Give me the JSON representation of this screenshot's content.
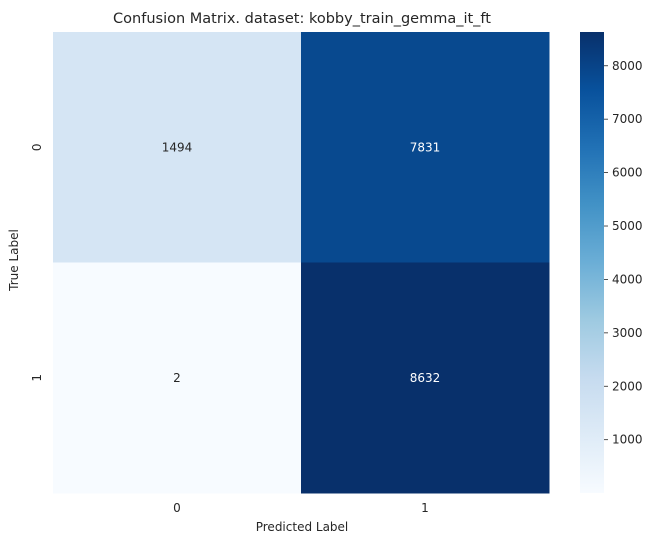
{
  "chart_data": {
    "type": "heatmap",
    "title": "Confusion Matrix. dataset: kobby_train_gemma_it_ft",
    "xlabel": "Predicted Label",
    "ylabel": "True Label",
    "x_categories": [
      "0",
      "1"
    ],
    "y_categories": [
      "0",
      "1"
    ],
    "values": [
      [
        1494,
        7831
      ],
      [
        2,
        8632
      ]
    ],
    "colormap": "Blues",
    "color_range": [
      2,
      8632
    ],
    "colorbar_ticks": [
      1000,
      2000,
      3000,
      4000,
      5000,
      6000,
      7000,
      8000
    ],
    "grid": false
  }
}
